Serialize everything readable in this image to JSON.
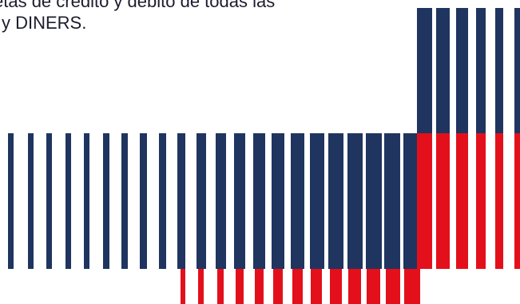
{
  "text": {
    "line1": "etas de crédito y débito de todas las",
    "line2": "y DINERS."
  },
  "colors": {
    "navy": "#1f3560",
    "red": "#e3101b",
    "background": "#ffffff",
    "text": "#1c1c2e"
  },
  "graphic": {
    "description_icon": "barcode-stripes-graphic"
  }
}
